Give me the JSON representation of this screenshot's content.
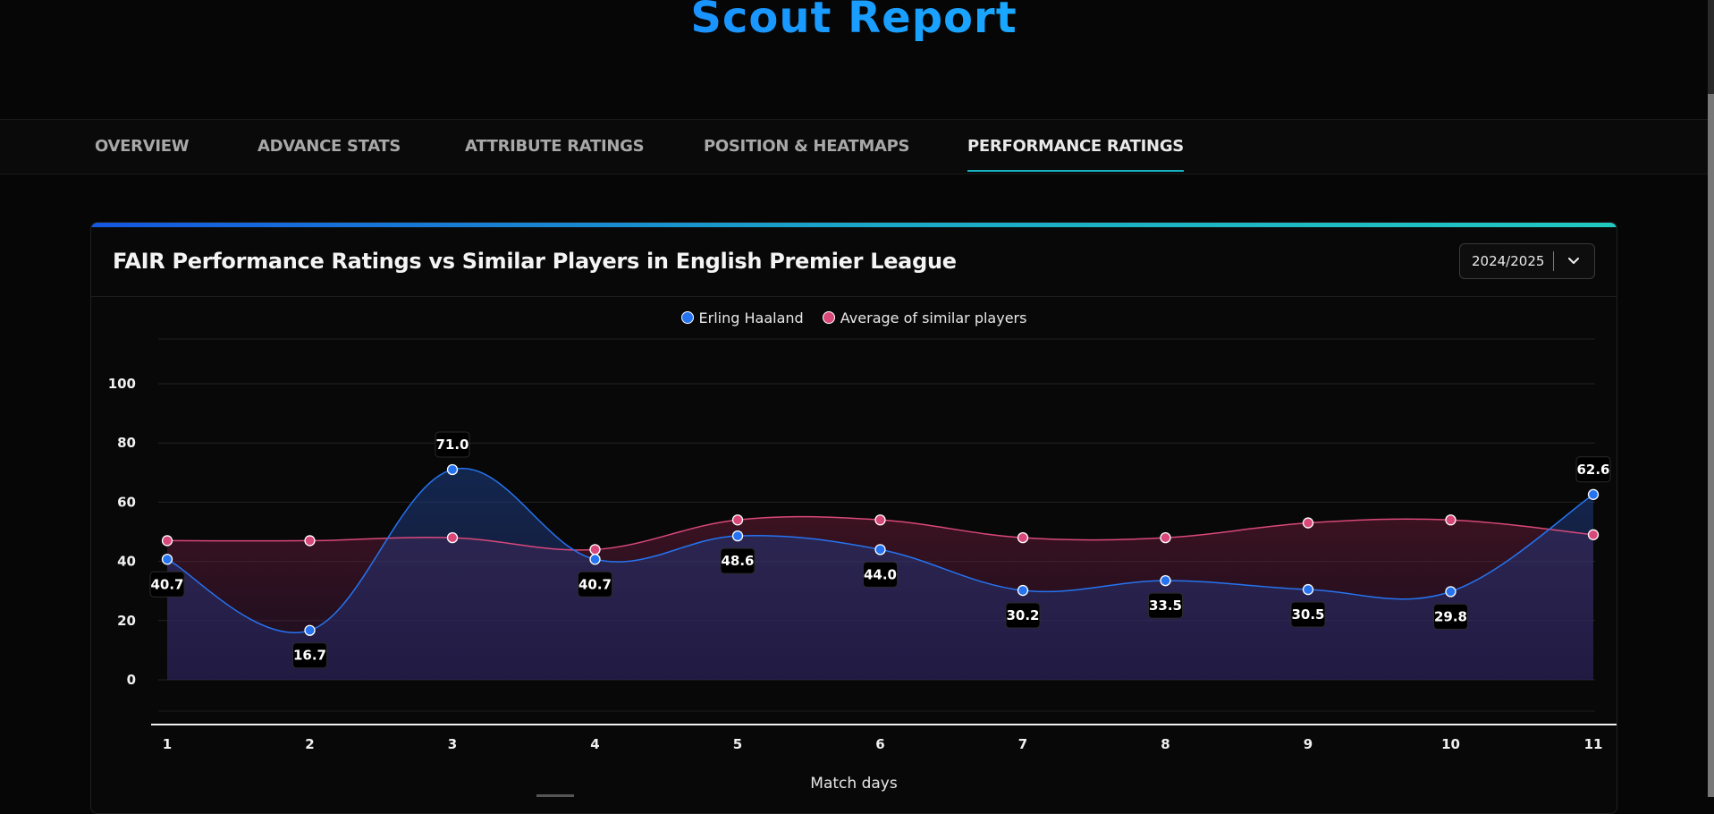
{
  "header": {
    "title": "Scout Report"
  },
  "tabs": [
    {
      "label": "OVERVIEW",
      "active": false
    },
    {
      "label": "ADVANCE STATS",
      "active": false
    },
    {
      "label": "ATTRIBUTE RATINGS",
      "active": false
    },
    {
      "label": "POSITION & HEATMAPS",
      "active": false
    },
    {
      "label": "PERFORMANCE RATINGS",
      "active": true
    }
  ],
  "card": {
    "title": "FAIR Performance Ratings vs Similar Players in English Premier League",
    "season": "2024/2025"
  },
  "colors": {
    "player": "#2673f0",
    "average": "#d9487a",
    "accent": "#17b3c4"
  },
  "chart_data": {
    "type": "area",
    "xlabel": "Match days",
    "ylabel": "",
    "x": [
      1,
      2,
      3,
      4,
      5,
      6,
      7,
      8,
      9,
      10,
      11
    ],
    "ylim": [
      0,
      100
    ],
    "yticks": [
      0,
      20,
      40,
      60,
      80,
      100
    ],
    "grid": true,
    "legend_position": "top-center",
    "series": [
      {
        "name": "Erling Haaland",
        "values": [
          40.7,
          16.7,
          71.0,
          40.7,
          48.6,
          44.0,
          30.2,
          33.5,
          30.5,
          29.8,
          62.6
        ],
        "labeled": true
      },
      {
        "name": "Average of similar players",
        "values": [
          47,
          47,
          48,
          44,
          54,
          54,
          48,
          48,
          53,
          54,
          49
        ],
        "labeled": false
      }
    ]
  }
}
